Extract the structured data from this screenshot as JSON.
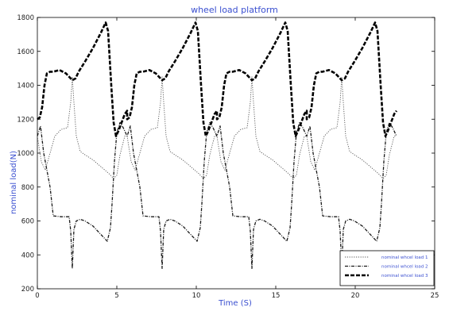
{
  "chart_data": {
    "type": "line",
    "title": "wheel load platform",
    "xlabel": "Time (S)",
    "ylabel": "nominal load(N)",
    "xlim": [
      0,
      25
    ],
    "ylim": [
      200,
      1800
    ],
    "xticks": [
      0,
      5,
      10,
      15,
      20,
      25
    ],
    "yticks": [
      200,
      400,
      600,
      800,
      1000,
      1200,
      1400,
      1600,
      1800
    ],
    "grid": false,
    "legend_position": "bottom-right",
    "period": 5.65,
    "series": [
      {
        "name": "nominal whcel load 1",
        "color": "#555555",
        "dash": "dotted",
        "cycles": 4,
        "x_end": 22.7,
        "cycle_x": [
          0.0,
          0.25,
          0.5,
          0.8,
          1.1,
          1.5,
          1.9,
          2.1,
          2.2,
          2.3,
          2.45,
          2.7,
          3.0,
          3.5,
          4.0,
          4.5,
          4.8,
          5.0,
          5.2,
          5.5,
          5.65
        ],
        "cycle_y": [
          1100,
          950,
          900,
          1000,
          1100,
          1140,
          1150,
          1300,
          1450,
          1300,
          1100,
          1010,
          990,
          960,
          920,
          880,
          850,
          870,
          990,
          1100,
          1100
        ]
      },
      {
        "name": "nominal whcel load 2",
        "color": "#1a1a1a",
        "dash": "dashdot",
        "cycles": 4,
        "x_end": 22.7,
        "cycle_x": [
          0.0,
          0.2,
          0.4,
          0.6,
          0.8,
          1.0,
          1.5,
          2.0,
          2.1,
          2.2,
          2.3,
          2.45,
          2.7,
          3.0,
          3.5,
          4.0,
          4.4,
          4.6,
          4.7,
          4.85,
          5.0,
          5.2,
          5.4,
          5.65
        ],
        "cycle_y": [
          1100,
          1160,
          1000,
          900,
          800,
          630,
          625,
          625,
          540,
          320,
          550,
          600,
          610,
          600,
          570,
          520,
          480,
          560,
          700,
          950,
          1120,
          1180,
          1150,
          1100
        ]
      },
      {
        "name": "nominal whcel load 3",
        "color": "#000000",
        "dash": "dashed",
        "cycles": 4,
        "x_end": 22.7,
        "cycle_x": [
          0.0,
          0.15,
          0.3,
          0.45,
          0.6,
          0.8,
          1.0,
          1.4,
          1.8,
          2.2,
          2.4,
          2.6,
          3.0,
          3.5,
          4.0,
          4.3,
          4.45,
          4.65,
          4.8,
          4.95,
          5.1,
          5.3,
          5.5,
          5.65
        ],
        "cycle_y": [
          1200,
          1210,
          1270,
          1400,
          1470,
          1480,
          1480,
          1490,
          1470,
          1430,
          1440,
          1480,
          1540,
          1620,
          1710,
          1770,
          1720,
          1400,
          1180,
          1100,
          1130,
          1180,
          1230,
          1250
        ]
      }
    ]
  }
}
